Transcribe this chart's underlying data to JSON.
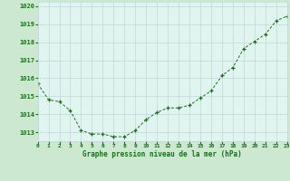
{
  "x": [
    0,
    1,
    2,
    3,
    4,
    5,
    6,
    7,
    8,
    9,
    10,
    11,
    12,
    13,
    14,
    15,
    16,
    17,
    18,
    19,
    20,
    21,
    22,
    23
  ],
  "y": [
    1015.7,
    1014.8,
    1014.7,
    1014.2,
    1013.1,
    1012.9,
    1012.9,
    1012.75,
    1012.75,
    1013.1,
    1013.7,
    1014.1,
    1014.35,
    1014.35,
    1014.5,
    1014.9,
    1015.3,
    1016.15,
    1016.6,
    1017.65,
    1018.05,
    1018.45,
    1019.2,
    1019.45
  ],
  "line_color": "#1a6e1a",
  "marker": "+",
  "marker_color": "#1a6e1a",
  "bg_color": "#cce8d0",
  "plot_bg_color": "#e0f4f0",
  "grid_color": "#c0d8d8",
  "xlabel": "Graphe pression niveau de la mer (hPa)",
  "xlabel_color": "#1a6e1a",
  "tick_color": "#1a6e1a",
  "ylim": [
    1012.5,
    1020.25
  ],
  "yticks": [
    1013,
    1014,
    1015,
    1016,
    1017,
    1018,
    1019,
    1020
  ],
  "xlim": [
    0,
    23
  ],
  "xticks": [
    0,
    1,
    2,
    3,
    4,
    5,
    6,
    7,
    8,
    9,
    10,
    11,
    12,
    13,
    14,
    15,
    16,
    17,
    18,
    19,
    20,
    21,
    22,
    23
  ]
}
